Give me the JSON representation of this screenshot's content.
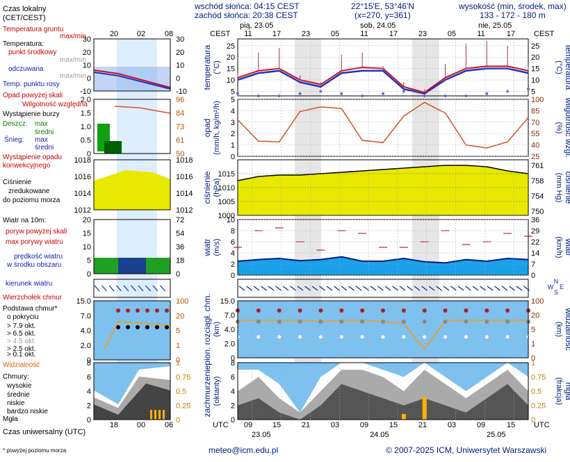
{
  "header": {
    "sunrise": "wschód słońca: 04:15 CEST",
    "sunset": "zachód słońca: 20:38 CEST",
    "coords": "22°15'E, 53°46'N",
    "grid": "(x=270, y=361)",
    "alt_title": "wysokość (min, środek, max)",
    "alt_values": "133 - 172 - 180 m"
  },
  "footer": {
    "email": "meteo@icm.edu.pl",
    "copyright": "© 2007-2025 ICM, Uniwersytet Warszawski",
    "note": "* powyżej poziomu morza"
  },
  "time_axis": {
    "local_label": "CEST",
    "utc_label": "UTC",
    "local_ticks": [
      "11",
      "17",
      "23",
      "05",
      "11",
      "17",
      "23",
      "05",
      "11",
      "17"
    ],
    "utc_ticks": [
      "09",
      "15",
      "21",
      "03",
      "09",
      "15",
      "21",
      "03",
      "09",
      "15"
    ],
    "top_days": [
      "pią, 23.05",
      "sob, 24.05",
      "nie, 25.05"
    ],
    "bottom_days": [
      "23.05",
      "24.05",
      "25.05"
    ]
  },
  "legend": {
    "local_time": "Czas lokalny",
    "local_time2": "(CET/CEST)",
    "legend_top_ticks": [
      "20",
      "02",
      "08"
    ],
    "legend_bottom_ticks": [
      "18",
      "00",
      "06"
    ],
    "utc_time": "Czas uniwersalny (UTC)",
    "temp": {
      "ground": "Temperatura gruntu",
      "ground_mm": "max/min",
      "temp": "Temperatura:",
      "mid": "punkt środkowy",
      "maxmin": "max/min",
      "felt": "odczuwana",
      "felt_mm": "max/min",
      "dew": "Temp. punktu rosy",
      "ticks": [
        "30",
        "20",
        "10",
        "0",
        "-10"
      ]
    },
    "precip": {
      "above": "Opad powyżej skali",
      "humidity": "Wilgotność względna",
      "storm": "Wystąpienie burzy",
      "rain": "Deszcz:",
      "max": "max",
      "mean": "średni",
      "snow": "Śnieg:",
      "conv": "Wystąpienie opadu",
      "conv2": "konwekcyjnego",
      "ticks": [
        "2.0",
        "1.5",
        "1.0",
        "0.5",
        "0"
      ],
      "rticks": [
        "96",
        "84",
        "73",
        "61",
        "50"
      ]
    },
    "pressure": {
      "l1": "Ciśnienie",
      "l2": "zredukowane",
      "l3": "do poziomu morza",
      "ticks": [
        "1018",
        "1016",
        "1014",
        "1012"
      ]
    },
    "wind": {
      "title": "Wiatr na 10m:",
      "gust_above": "poryw powyżej skali",
      "gust_max": "max porywy wiatru",
      "speed": "prędkość wiatru",
      "speed2": "w środku obszaru",
      "ticks": [
        "20",
        "15",
        "10",
        "5",
        "0"
      ],
      "rticks": [
        "72",
        "54",
        "36",
        "18",
        "0"
      ]
    },
    "direction": "kierunek wiatru",
    "clouds": {
      "top": "Wierzchołek chmur",
      "base": "Podstawa chmur*",
      "base2": "o pokryciu",
      "o79": "> 7.9 okt.",
      "o65": "> 6.5 okt.",
      "o45": "> 4.5 okt.",
      "o25": "> 2.5 okt.",
      "o01": "> 0.1 okt.",
      "vis": "Widzialność",
      "ticks": [
        "15.0",
        "7.0",
        "4.0",
        "2.0",
        "0"
      ],
      "rticks": [
        "100",
        "20",
        "5",
        "1",
        "0"
      ]
    },
    "cover": {
      "title": "Chmury:",
      "high": "wysokie",
      "mid": "średnie",
      "low": "niskie",
      "vlow": "bardzo niskie",
      "fog": "Mgła",
      "ticks": [
        "8",
        "6",
        "4",
        "2",
        "0"
      ],
      "rticks": [
        "1",
        "0.75",
        "0.5",
        "0.25",
        "0"
      ]
    }
  },
  "panels": {
    "temp": {
      "ylabel_l": "temperatura",
      "ylabel_l2": "(°C)",
      "ylabel_r": "temperatura",
      "ylabel_r2": "(°C)",
      "ticks": [
        "25",
        "20",
        "15",
        "10",
        "5"
      ]
    },
    "precip": {
      "ylabel_l": "opad",
      "ylabel_l2": "(mm/h, kg/m²/h)",
      "ylabel_r": "wilgotność wzgl.",
      "ylabel_r2": "(%)",
      "ticks": [
        "5",
        "4",
        "3",
        "2",
        "1",
        "0"
      ],
      "rticks": [
        "100",
        "85",
        "70",
        "55",
        "40",
        "25"
      ]
    },
    "pressure": {
      "ylabel_l": "ciśnienie",
      "ylabel_l2": "(hPa)",
      "ylabel_r": "ciśnienie",
      "ylabel_r2": "(mm Hg)",
      "ticks": [
        "1015",
        "1010",
        "1005",
        "1000"
      ],
      "rticks": [
        "761",
        "758",
        "754",
        "750"
      ]
    },
    "wind": {
      "ylabel_l": "wiatr",
      "ylabel_l2": "(m/s)",
      "ylabel_r": "wiatr",
      "ylabel_r2": "(km/h)",
      "ticks": [
        "10",
        "8",
        "6",
        "4",
        "2",
        "0"
      ],
      "rticks": [
        "36",
        "29",
        "22",
        "14",
        "7",
        "0"
      ]
    },
    "direction": {
      "n": "N",
      "w": "W",
      "e": "E",
      "s": "S"
    },
    "clouds": {
      "ylabel_l": "pion. rozciągł. chm.",
      "ylabel_l2": "(km)",
      "ylabel_r": "widzialność",
      "ylabel_r2": "(km)",
      "ticks": [
        "15.0",
        "7.0",
        "4.0",
        "2.0",
        "0"
      ],
      "rticks": [
        "100",
        "20",
        "5",
        "1",
        "0"
      ]
    },
    "cover": {
      "ylabel_l": "zachmurzenie",
      "ylabel_l2": "(oktanty)",
      "ylabel_r": "mgła",
      "ylabel_r2": "(frakcja)",
      "ticks": [
        "8",
        "6",
        "4",
        "2",
        "0"
      ],
      "rticks": [
        "1",
        "0.75",
        "0.5",
        "0.25",
        "0"
      ]
    }
  },
  "chart_data": [
    {
      "type": "line",
      "name": "temperature",
      "hours_utc": [
        6,
        12,
        18,
        24,
        30,
        36,
        42,
        48,
        54,
        60,
        66,
        72,
        78,
        84,
        90
      ],
      "x": [
        "06",
        "12",
        "18",
        "00",
        "06",
        "12",
        "18",
        "00",
        "06",
        "12",
        "18",
        "00",
        "06",
        "12",
        "18"
      ],
      "mid": [
        11,
        14,
        15,
        10,
        8,
        14,
        15.5,
        15,
        7,
        4.5,
        11,
        15,
        16,
        16,
        14
      ],
      "max": [
        13,
        22,
        24,
        12,
        9,
        21,
        22,
        16,
        9,
        6,
        17,
        26,
        27,
        25,
        16
      ],
      "felt": [
        10,
        13,
        14,
        9,
        7,
        13,
        14,
        14,
        6,
        4,
        10,
        14,
        15,
        15,
        13
      ],
      "dew": [
        4,
        3,
        3,
        4,
        5,
        4,
        3,
        4,
        5,
        3,
        3,
        3,
        4,
        5,
        6
      ],
      "ylim": [
        3,
        28
      ]
    },
    {
      "type": "line",
      "name": "humidity",
      "x": [
        "06",
        "12",
        "18",
        "00",
        "06",
        "12",
        "18",
        "00",
        "06",
        "12",
        "18",
        "00",
        "06",
        "12",
        "18"
      ],
      "humidity_pct": [
        73,
        45,
        44,
        84,
        90,
        88,
        46,
        43,
        78,
        96,
        82,
        40,
        36,
        44,
        76
      ],
      "precip_mm": [
        0,
        0,
        0,
        0,
        0,
        0,
        0,
        0,
        0,
        0,
        0,
        0,
        0,
        0,
        0
      ]
    },
    {
      "type": "area",
      "name": "pressure_hpa",
      "x": [
        "06",
        "12",
        "18",
        "00",
        "06",
        "12",
        "18",
        "00",
        "06",
        "12",
        "18",
        "00",
        "06",
        "12",
        "18"
      ],
      "values": [
        1012.5,
        1014,
        1014.5,
        1014.5,
        1015,
        1015.5,
        1016,
        1016.5,
        1017,
        1017.5,
        1018,
        1018,
        1017.5,
        1016,
        1015
      ],
      "ylim": [
        1000,
        1020
      ]
    },
    {
      "type": "area",
      "name": "wind_ms",
      "x": [
        "06",
        "12",
        "18",
        "00",
        "06",
        "12",
        "18",
        "00",
        "06",
        "12",
        "18",
        "00",
        "06",
        "12",
        "18"
      ],
      "speed": [
        2.5,
        2.8,
        3.0,
        2.6,
        2.8,
        3.3,
        2.5,
        2.5,
        3.0,
        2.4,
        2.2,
        2.8,
        2.5,
        3.0,
        2.8
      ],
      "gust": [
        5,
        8,
        8.5,
        6,
        4.5,
        8,
        7.5,
        5,
        5,
        6,
        8,
        5.5,
        6,
        7.5,
        7
      ],
      "ylim": [
        0,
        10
      ]
    },
    {
      "type": "scatter",
      "name": "cloud_base_km",
      "x": [
        "06",
        "12",
        "18",
        "00",
        "06",
        "12",
        "18",
        "00",
        "06",
        "12",
        "18",
        "00",
        "06",
        "12",
        "18"
      ],
      "visibility_km": [
        20,
        20,
        20,
        20,
        18,
        20,
        20,
        18,
        15,
        1,
        20,
        20,
        20,
        20,
        20
      ]
    },
    {
      "type": "area",
      "name": "cloud_cover_okta",
      "x": [
        "06",
        "12",
        "18",
        "00",
        "06",
        "12",
        "18",
        "00",
        "06",
        "12",
        "18",
        "00",
        "06",
        "12",
        "18"
      ],
      "low": [
        2,
        3,
        1,
        0,
        2,
        5,
        4,
        3,
        2,
        3,
        2,
        1,
        3,
        5,
        2
      ],
      "mid": [
        4,
        6,
        3,
        1,
        4,
        7,
        7,
        6,
        4,
        7,
        5,
        3,
        5,
        7,
        4
      ],
      "high": [
        7,
        7,
        5,
        1,
        6,
        8,
        8,
        7,
        6,
        8,
        6,
        4,
        6,
        8,
        6
      ],
      "fog": [
        0,
        0,
        0,
        0,
        0,
        0,
        0,
        0,
        0.1,
        0.4,
        0,
        0,
        0,
        0,
        0
      ]
    }
  ]
}
